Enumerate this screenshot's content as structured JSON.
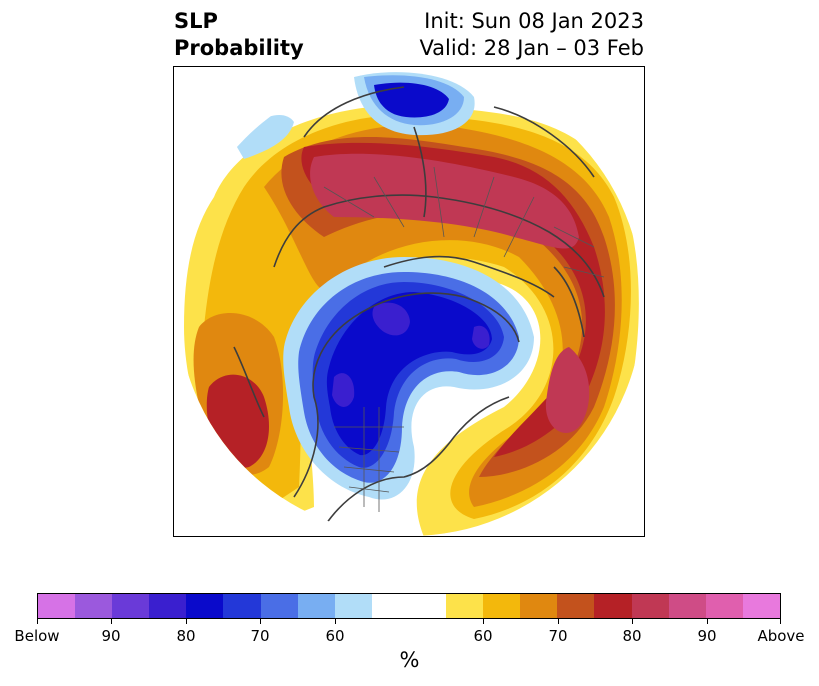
{
  "header": {
    "title_line1": "SLP",
    "title_line2": "Probability",
    "init": "Init: Sun 08 Jan 2023",
    "valid": "Valid: 28 Jan – 03 Feb"
  },
  "colorbar": {
    "unit": "%",
    "tick_labels": [
      "Below",
      "90",
      "80",
      "70",
      "60",
      "60",
      "70",
      "80",
      "90",
      "Above"
    ],
    "colors": [
      "#d672e6",
      "#9b59dd",
      "#6a3ad8",
      "#3a1fcf",
      "#0a0acb",
      "#2338d8",
      "#4a6ee6",
      "#78aef2",
      "#b1ddf8",
      "#ffffff",
      "#fde24a",
      "#f3b80c",
      "#e08810",
      "#c3521d",
      "#b52126",
      "#c03854",
      "#cf4c86",
      "#e05fae",
      "#e879dd"
    ]
  },
  "map": {
    "description_icon": "north-polar-stereographic-map",
    "colors": {
      "coast": "#3d3d3d",
      "below_strong": "#0a0acb",
      "below_mid": "#2338d8",
      "below_weak": "#78aef2",
      "below_faint": "#b1ddf8",
      "above_faint": "#fde24a",
      "above_weak": "#f3b80c",
      "above_mid": "#e08810",
      "above_strong": "#b52126",
      "above_max": "#c03854"
    }
  }
}
